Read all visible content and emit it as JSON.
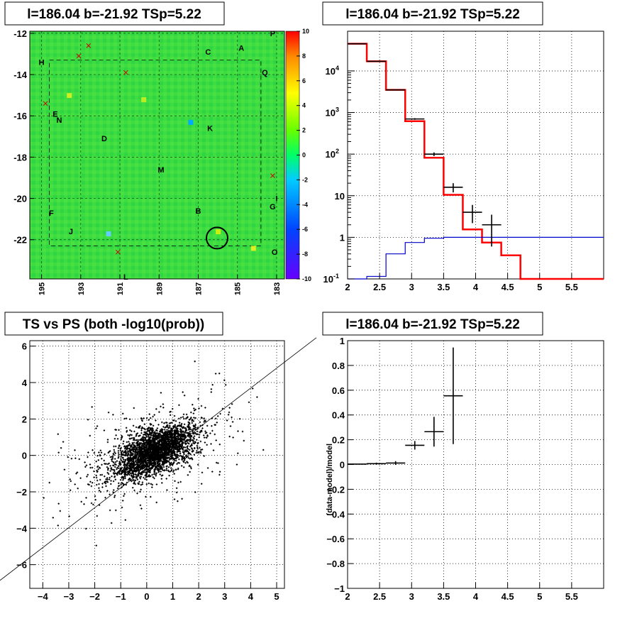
{
  "chart_data": [
    {
      "type": "heatmap",
      "title": "l=186.04 b=-21.92 TSp=5.22",
      "x_ticks": [
        "195",
        "193",
        "191",
        "189",
        "187",
        "185",
        "183"
      ],
      "y_ticks": [
        "-12",
        "-14",
        "-16",
        "-18",
        "-20",
        "-22"
      ],
      "xlim": [
        195.6,
        182.6
      ],
      "ylim": [
        -23.9,
        -11.9
      ],
      "colorbar": {
        "range": [
          -10,
          10
        ],
        "ticks": [
          "10",
          "8",
          "6",
          "4",
          "2",
          "0",
          "-2",
          "-4",
          "-6",
          "-8",
          "-10"
        ]
      },
      "colors": {
        "background": "#33dd44",
        "circle": "#000000",
        "marker": "#cc0000"
      },
      "region_labels": [
        {
          "text": "P",
          "l": 183.2,
          "b": -12.0
        },
        {
          "text": "A",
          "l": 184.8,
          "b": -12.7
        },
        {
          "text": "C",
          "l": 186.5,
          "b": -12.9
        },
        {
          "text": "H",
          "l": 195.0,
          "b": -13.4
        },
        {
          "text": "Q",
          "l": 183.6,
          "b": -13.9
        },
        {
          "text": "E",
          "l": 194.3,
          "b": -15.9
        },
        {
          "text": "N",
          "l": 194.1,
          "b": -16.2
        },
        {
          "text": "K",
          "l": 186.4,
          "b": -16.6
        },
        {
          "text": "D",
          "l": 191.8,
          "b": -17.1
        },
        {
          "text": "M",
          "l": 188.9,
          "b": -18.6
        },
        {
          "text": "I",
          "l": 183.0,
          "b": -20.0
        },
        {
          "text": "G",
          "l": 183.2,
          "b": -20.4
        },
        {
          "text": "B",
          "l": 187.0,
          "b": -20.6
        },
        {
          "text": "F",
          "l": 194.5,
          "b": -20.7
        },
        {
          "text": "J",
          "l": 193.5,
          "b": -21.6
        },
        {
          "text": "O",
          "l": 183.1,
          "b": -22.6
        },
        {
          "text": "L",
          "l": 190.7,
          "b": -23.8
        }
      ],
      "cross_markers": [
        {
          "l": 192.6,
          "b": -12.6
        },
        {
          "l": 193.1,
          "b": -13.1
        },
        {
          "l": 190.7,
          "b": -13.9
        },
        {
          "l": 194.8,
          "b": -15.4
        },
        {
          "l": 183.2,
          "b": -18.9
        },
        {
          "l": 191.1,
          "b": -22.6
        }
      ],
      "source_circle": {
        "l": 186.04,
        "b": -21.92
      }
    },
    {
      "type": "line",
      "title": "l=186.04 b=-21.92 TSp=5.22",
      "x_ticks": [
        "2",
        "2.5",
        "3",
        "3.5",
        "4",
        "4.5",
        "5",
        "5.5"
      ],
      "y_ticks": [
        "10^-1",
        "1",
        "10",
        "10^2",
        "10^3",
        "10^4"
      ],
      "xlim": [
        2,
        6
      ],
      "ylim": [
        0.1,
        90000
      ],
      "yscale": "log",
      "series": [
        {
          "style": "step",
          "color": "#ff0000",
          "edges": [
            2,
            2.3,
            2.6,
            2.9,
            3.2,
            3.5,
            3.8,
            4.1,
            4.4,
            4.7,
            5.0,
            6.0
          ],
          "values": [
            45000,
            17000,
            3500,
            620,
            82,
            10.5,
            1.55,
            0.75,
            0.37,
            0.1,
            0.1
          ]
        },
        {
          "style": "step",
          "color": "#0000cc",
          "edges": [
            2,
            2.3,
            2.6,
            2.9,
            3.2,
            3.5,
            3.8,
            6.0
          ],
          "values": [
            0.1,
            0.115,
            0.4,
            0.75,
            0.95,
            1.0,
            1.0
          ]
        },
        {
          "style": "errorbar",
          "color": "#000000",
          "points": [
            {
              "x": 2.15,
              "y": 45000,
              "xe": 0.15,
              "ylo": 44800,
              "yhi": 45200
            },
            {
              "x": 2.45,
              "y": 17000,
              "xe": 0.15,
              "ylo": 16800,
              "yhi": 17200
            },
            {
              "x": 2.75,
              "y": 3500,
              "xe": 0.15,
              "ylo": 3450,
              "yhi": 3550
            },
            {
              "x": 3.05,
              "y": 700,
              "xe": 0.15,
              "ylo": 670,
              "yhi": 730
            },
            {
              "x": 3.35,
              "y": 100,
              "xe": 0.15,
              "ylo": 90,
              "yhi": 110
            },
            {
              "x": 3.65,
              "y": 16,
              "xe": 0.15,
              "ylo": 12,
              "yhi": 20
            },
            {
              "x": 3.95,
              "y": 4,
              "xe": 0.15,
              "ylo": 2.2,
              "yhi": 6
            },
            {
              "x": 4.25,
              "y": 2,
              "xe": 0.15,
              "ylo": 0.6,
              "yhi": 3.5
            }
          ]
        }
      ]
    },
    {
      "type": "scatter",
      "title": "TS vs PS (both -log10(prob))",
      "x_ticks": [
        "−4",
        "−3",
        "−2",
        "−1",
        "0",
        "1",
        "2",
        "3",
        "4",
        "5"
      ],
      "y_ticks": [
        "6",
        "4",
        "2",
        "0",
        "−2",
        "−4",
        "−6"
      ],
      "xlim": [
        -4.5,
        5.3
      ],
      "ylim": [
        -7.3,
        6.3
      ],
      "reference_line": [
        [
          -4.5,
          -5.5
        ],
        [
          5.3,
          5.1
        ]
      ]
    },
    {
      "type": "scatter",
      "title": "l=186.04 b=-21.92 TSp=5.22",
      "ylabel": "(data-model)/model",
      "x_ticks": [
        "2",
        "2.5",
        "3",
        "3.5",
        "4",
        "4.5",
        "5",
        "5.5"
      ],
      "y_ticks": [
        "1",
        "0.8",
        "0.6",
        "0.4",
        "0.2",
        "0",
        "−0.2",
        "−0.4",
        "−0.6",
        "−0.8",
        "−1"
      ],
      "xlim": [
        2,
        6
      ],
      "ylim": [
        -1,
        1
      ],
      "points": [
        {
          "x": 2.15,
          "y": 0.003,
          "xe": 0.15,
          "ye": 0.004
        },
        {
          "x": 2.45,
          "y": 0.007,
          "xe": 0.15,
          "ye": 0.008
        },
        {
          "x": 2.75,
          "y": 0.012,
          "xe": 0.15,
          "ye": 0.015
        },
        {
          "x": 3.05,
          "y": 0.155,
          "xe": 0.15,
          "ye": 0.035
        },
        {
          "x": 3.35,
          "y": 0.265,
          "xe": 0.15,
          "ye": 0.12
        },
        {
          "x": 3.65,
          "y": 0.555,
          "xe": 0.15,
          "ye": 0.39
        }
      ]
    }
  ]
}
